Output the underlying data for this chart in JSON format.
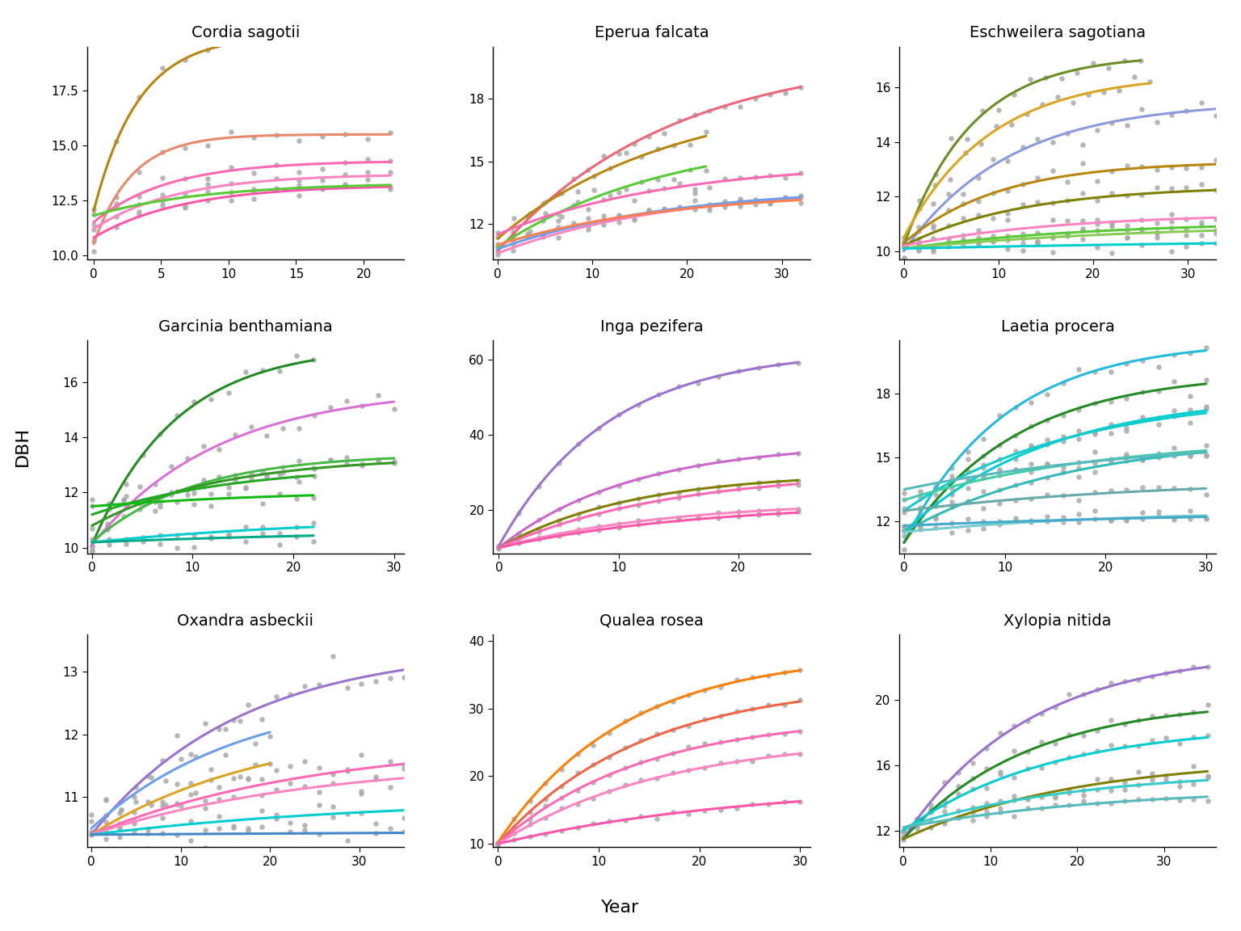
{
  "subplots": [
    {
      "title": "Cordia sagotii",
      "ylim": [
        9.8,
        19.5
      ],
      "xlim": [
        -0.5,
        23
      ],
      "yticks": [
        10.0,
        12.5,
        15.0,
        17.5
      ],
      "xticks": [
        0,
        5,
        10,
        15,
        20
      ],
      "individuals": [
        {
          "color": "#B8860B",
          "dbh0": 12.0,
          "A": 8.0,
          "k": 0.3,
          "xmax": 22
        },
        {
          "color": "#E8896A",
          "dbh0": 10.5,
          "A": 5.0,
          "k": 0.35,
          "xmax": 22
        },
        {
          "color": "#FF69B4",
          "dbh0": 11.5,
          "A": 2.8,
          "k": 0.18,
          "xmax": 22
        },
        {
          "color": "#FF85C2",
          "dbh0": 11.2,
          "A": 2.5,
          "k": 0.16,
          "xmax": 22
        },
        {
          "color": "#FF55AA",
          "dbh0": 10.8,
          "A": 2.4,
          "k": 0.15,
          "xmax": 22
        },
        {
          "color": "#55CC33",
          "dbh0": 11.8,
          "A": 1.5,
          "k": 0.12,
          "xmax": 22
        }
      ]
    },
    {
      "title": "Eperua falcata",
      "ylim": [
        10.3,
        20.5
      ],
      "xlim": [
        -0.5,
        33
      ],
      "yticks": [
        12,
        15,
        18
      ],
      "xticks": [
        0,
        10,
        20,
        30
      ],
      "individuals": [
        {
          "color": "#EE6677",
          "dbh0": 10.7,
          "A": 9.5,
          "k": 0.055,
          "xmax": 32
        },
        {
          "color": "#B8860B",
          "dbh0": 11.3,
          "A": 7.0,
          "k": 0.055,
          "xmax": 22
        },
        {
          "color": "#55CC33",
          "dbh0": 10.9,
          "A": 5.5,
          "k": 0.055,
          "xmax": 22
        },
        {
          "color": "#FF69B4",
          "dbh0": 11.5,
          "A": 3.5,
          "k": 0.055,
          "xmax": 32
        },
        {
          "color": "#FF85C2",
          "dbh0": 10.6,
          "A": 3.2,
          "k": 0.055,
          "xmax": 32
        },
        {
          "color": "#6B9FEE",
          "dbh0": 10.8,
          "A": 3.0,
          "k": 0.055,
          "xmax": 32
        },
        {
          "color": "#FF7F50",
          "dbh0": 11.0,
          "A": 2.6,
          "k": 0.055,
          "xmax": 32
        }
      ]
    },
    {
      "title": "Eschweilera sagotiana",
      "ylim": [
        9.7,
        17.5
      ],
      "xlim": [
        -0.5,
        33
      ],
      "yticks": [
        10,
        12,
        14,
        16
      ],
      "xticks": [
        0,
        10,
        20,
        30
      ],
      "individuals": [
        {
          "color": "#6B8E23",
          "dbh0": 10.2,
          "A": 7.0,
          "k": 0.14,
          "xmax": 25
        },
        {
          "color": "#DAA520",
          "dbh0": 10.5,
          "A": 6.0,
          "k": 0.11,
          "xmax": 26
        },
        {
          "color": "#8899DD",
          "dbh0": 10.0,
          "A": 5.5,
          "k": 0.09,
          "xmax": 33
        },
        {
          "color": "#B8860B",
          "dbh0": 10.3,
          "A": 3.0,
          "k": 0.1,
          "xmax": 33
        },
        {
          "color": "#808000",
          "dbh0": 10.2,
          "A": 2.2,
          "k": 0.08,
          "xmax": 33
        },
        {
          "color": "#FF85C2",
          "dbh0": 10.2,
          "A": 1.2,
          "k": 0.06,
          "xmax": 33
        },
        {
          "color": "#55CC33",
          "dbh0": 10.1,
          "A": 1.0,
          "k": 0.05,
          "xmax": 33
        },
        {
          "color": "#88CC55",
          "dbh0": 10.1,
          "A": 0.9,
          "k": 0.04,
          "xmax": 33
        },
        {
          "color": "#00CED1",
          "dbh0": 10.1,
          "A": 0.4,
          "k": 0.02,
          "xmax": 33
        }
      ]
    },
    {
      "title": "Garcinia benthamiana",
      "ylim": [
        9.8,
        17.5
      ],
      "xlim": [
        -0.5,
        31
      ],
      "yticks": [
        10,
        12,
        14,
        16
      ],
      "xticks": [
        0,
        10,
        20,
        30
      ],
      "individuals": [
        {
          "color": "#228B22",
          "dbh0": 10.1,
          "A": 7.2,
          "k": 0.12,
          "xmax": 22
        },
        {
          "color": "#DA70D6",
          "dbh0": 10.1,
          "A": 5.7,
          "k": 0.08,
          "xmax": 30
        },
        {
          "color": "#44BB44",
          "dbh0": 10.2,
          "A": 3.2,
          "k": 0.1,
          "xmax": 30
        },
        {
          "color": "#339922",
          "dbh0": 10.8,
          "A": 2.5,
          "k": 0.08,
          "xmax": 30
        },
        {
          "color": "#22AA22",
          "dbh0": 11.2,
          "A": 1.8,
          "k": 0.07,
          "xmax": 22
        },
        {
          "color": "#11BB11",
          "dbh0": 11.5,
          "A": 0.6,
          "k": 0.05,
          "xmax": 22
        },
        {
          "color": "#00CED1",
          "dbh0": 10.2,
          "A": 0.95,
          "k": 0.04,
          "xmax": 22
        },
        {
          "color": "#00AA88",
          "dbh0": 10.2,
          "A": 0.5,
          "k": 0.03,
          "xmax": 22
        }
      ]
    },
    {
      "title": "Inga pezifera",
      "ylim": [
        8.5,
        65
      ],
      "xlim": [
        -0.5,
        26
      ],
      "yticks": [
        20,
        40,
        60
      ],
      "xticks": [
        0,
        10,
        20
      ],
      "individuals": [
        {
          "color": "#9B72CF",
          "dbh0": 10.5,
          "A": 52.0,
          "k": 0.11,
          "xmax": 25
        },
        {
          "color": "#CC66CC",
          "dbh0": 10.0,
          "A": 28.0,
          "k": 0.09,
          "xmax": 25
        },
        {
          "color": "#808000",
          "dbh0": 10.0,
          "A": 20.0,
          "k": 0.09,
          "xmax": 25
        },
        {
          "color": "#FF69B4",
          "dbh0": 10.0,
          "A": 20.5,
          "k": 0.07,
          "xmax": 25
        },
        {
          "color": "#FF85C2",
          "dbh0": 10.0,
          "A": 12.5,
          "k": 0.07,
          "xmax": 25
        },
        {
          "color": "#FF55AA",
          "dbh0": 10.0,
          "A": 12.0,
          "k": 0.06,
          "xmax": 25
        }
      ]
    },
    {
      "title": "Laetia procera",
      "ylim": [
        10.5,
        20.5
      ],
      "xlim": [
        -0.5,
        31
      ],
      "yticks": [
        12,
        15,
        18
      ],
      "xticks": [
        0,
        10,
        20,
        30
      ],
      "individuals": [
        {
          "color": "#22BBDD",
          "dbh0": 11.0,
          "A": 9.5,
          "k": 0.1,
          "xmax": 30
        },
        {
          "color": "#228B22",
          "dbh0": 11.0,
          "A": 8.0,
          "k": 0.09,
          "xmax": 30
        },
        {
          "color": "#00CED1",
          "dbh0": 11.5,
          "A": 6.5,
          "k": 0.07,
          "xmax": 30
        },
        {
          "color": "#11CCCC",
          "dbh0": 12.5,
          "A": 5.5,
          "k": 0.06,
          "xmax": 30
        },
        {
          "color": "#33BBBB",
          "dbh0": 11.5,
          "A": 4.5,
          "k": 0.06,
          "xmax": 30
        },
        {
          "color": "#44CCAA",
          "dbh0": 13.0,
          "A": 3.0,
          "k": 0.05,
          "xmax": 30
        },
        {
          "color": "#55BBBB",
          "dbh0": 13.5,
          "A": 2.5,
          "k": 0.04,
          "xmax": 30
        },
        {
          "color": "#66AAAA",
          "dbh0": 12.5,
          "A": 1.5,
          "k": 0.04,
          "xmax": 30
        },
        {
          "color": "#77CCCC",
          "dbh0": 11.5,
          "A": 1.0,
          "k": 0.05,
          "xmax": 30
        },
        {
          "color": "#44AACC",
          "dbh0": 11.8,
          "A": 0.7,
          "k": 0.03,
          "xmax": 30
        }
      ]
    },
    {
      "title": "Oxandra asbeckii",
      "ylim": [
        10.2,
        13.6
      ],
      "xlim": [
        -0.5,
        35
      ],
      "yticks": [
        11,
        12,
        13
      ],
      "xticks": [
        0,
        10,
        20,
        30
      ],
      "individuals": [
        {
          "color": "#9B72CF",
          "dbh0": 10.4,
          "A": 3.0,
          "k": 0.06,
          "xmax": 35
        },
        {
          "color": "#6B9FEE",
          "dbh0": 10.5,
          "A": 2.2,
          "k": 0.06,
          "xmax": 20
        },
        {
          "color": "#DAA520",
          "dbh0": 10.4,
          "A": 1.8,
          "k": 0.05,
          "xmax": 20
        },
        {
          "color": "#FF69B4",
          "dbh0": 10.4,
          "A": 1.5,
          "k": 0.04,
          "xmax": 35
        },
        {
          "color": "#FF85C2",
          "dbh0": 10.4,
          "A": 1.2,
          "k": 0.04,
          "xmax": 35
        },
        {
          "color": "#00CED1",
          "dbh0": 10.4,
          "A": 0.6,
          "k": 0.03,
          "xmax": 35
        },
        {
          "color": "#4488CC",
          "dbh0": 10.4,
          "A": 0.1,
          "k": 0.01,
          "xmax": 35
        }
      ]
    },
    {
      "title": "Qualea rosea",
      "ylim": [
        9.5,
        41
      ],
      "xlim": [
        -0.5,
        31
      ],
      "yticks": [
        10,
        20,
        30,
        40
      ],
      "xticks": [
        0,
        10,
        20,
        30
      ],
      "individuals": [
        {
          "color": "#FF7F00",
          "dbh0": 10.2,
          "A": 28.0,
          "k": 0.08,
          "xmax": 30
        },
        {
          "color": "#EE6644",
          "dbh0": 10.0,
          "A": 24.0,
          "k": 0.07,
          "xmax": 30
        },
        {
          "color": "#FF69B4",
          "dbh0": 10.0,
          "A": 19.0,
          "k": 0.07,
          "xmax": 30
        },
        {
          "color": "#FF85C2",
          "dbh0": 10.0,
          "A": 16.0,
          "k": 0.06,
          "xmax": 30
        },
        {
          "color": "#FF55AA",
          "dbh0": 10.0,
          "A": 9.0,
          "k": 0.04,
          "xmax": 30
        }
      ]
    },
    {
      "title": "Xylopia nitida",
      "ylim": [
        11.0,
        24
      ],
      "xlim": [
        -0.5,
        36
      ],
      "yticks": [
        12,
        16,
        20
      ],
      "xticks": [
        0,
        10,
        20,
        30
      ],
      "individuals": [
        {
          "color": "#9B72CF",
          "dbh0": 11.5,
          "A": 11.5,
          "k": 0.07,
          "xmax": 35
        },
        {
          "color": "#228B22",
          "dbh0": 11.5,
          "A": 8.5,
          "k": 0.07,
          "xmax": 35
        },
        {
          "color": "#00CED1",
          "dbh0": 12.0,
          "A": 6.5,
          "k": 0.06,
          "xmax": 35
        },
        {
          "color": "#808000",
          "dbh0": 11.5,
          "A": 5.0,
          "k": 0.05,
          "xmax": 35
        },
        {
          "color": "#33CCCC",
          "dbh0": 12.2,
          "A": 3.5,
          "k": 0.05,
          "xmax": 35
        },
        {
          "color": "#55BBBB",
          "dbh0": 12.2,
          "A": 2.5,
          "k": 0.04,
          "xmax": 35
        }
      ]
    }
  ],
  "ylabel": "DBH",
  "xlabel": "Year",
  "bg_color": "#FFFFFF",
  "dot_color": "#AAAAAA",
  "dot_size": 22,
  "line_width": 2.2,
  "title_fontsize": 14,
  "label_fontsize": 14,
  "tick_fontsize": 11
}
